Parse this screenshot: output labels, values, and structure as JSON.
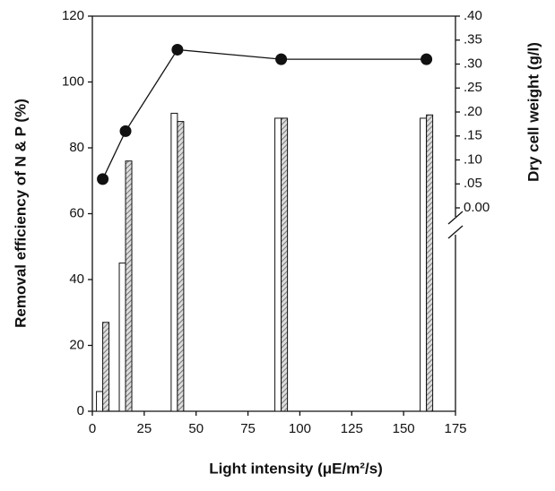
{
  "chart_data": {
    "type": "bar",
    "x": [
      5,
      16,
      41,
      91,
      161
    ],
    "series": [
      {
        "type": "bar",
        "color": "#ffffff",
        "values": [
          6,
          45,
          90.5,
          89,
          89
        ]
      },
      {
        "type": "bar",
        "color": "#777777",
        "hatched": true,
        "values": [
          27,
          76,
          88,
          89,
          90
        ]
      },
      {
        "type": "line",
        "axis": "y2",
        "color": "#111111",
        "values": [
          0.06,
          0.16,
          0.33,
          0.31,
          0.31
        ]
      }
    ],
    "xlabel": "Light intensity (μE/m²/s)",
    "ylabel": "Removal efficiency of N & P (%)",
    "y2label": "Dry cell weight (g/l)",
    "xlim": [
      0,
      175
    ],
    "xticks": [
      0,
      25,
      50,
      75,
      100,
      125,
      150,
      175
    ],
    "ylim": [
      0,
      120
    ],
    "yticks": [
      0,
      20,
      40,
      60,
      80,
      100,
      120
    ],
    "y2lim": [
      0,
      0.4
    ],
    "y2ticks": [
      {
        "value": 0,
        "label": "0.00"
      },
      {
        "value": 0.05,
        "label": ".05"
      },
      {
        "value": 0.1,
        "label": ".10"
      },
      {
        "value": 0.15,
        "label": ".15"
      },
      {
        "value": 0.2,
        "label": ".20"
      },
      {
        "value": 0.25,
        "label": ".25"
      },
      {
        "value": 0.3,
        "label": ".30"
      },
      {
        "value": 0.35,
        "label": ".35"
      },
      {
        "value": 0.4,
        "label": ".40"
      }
    ]
  }
}
